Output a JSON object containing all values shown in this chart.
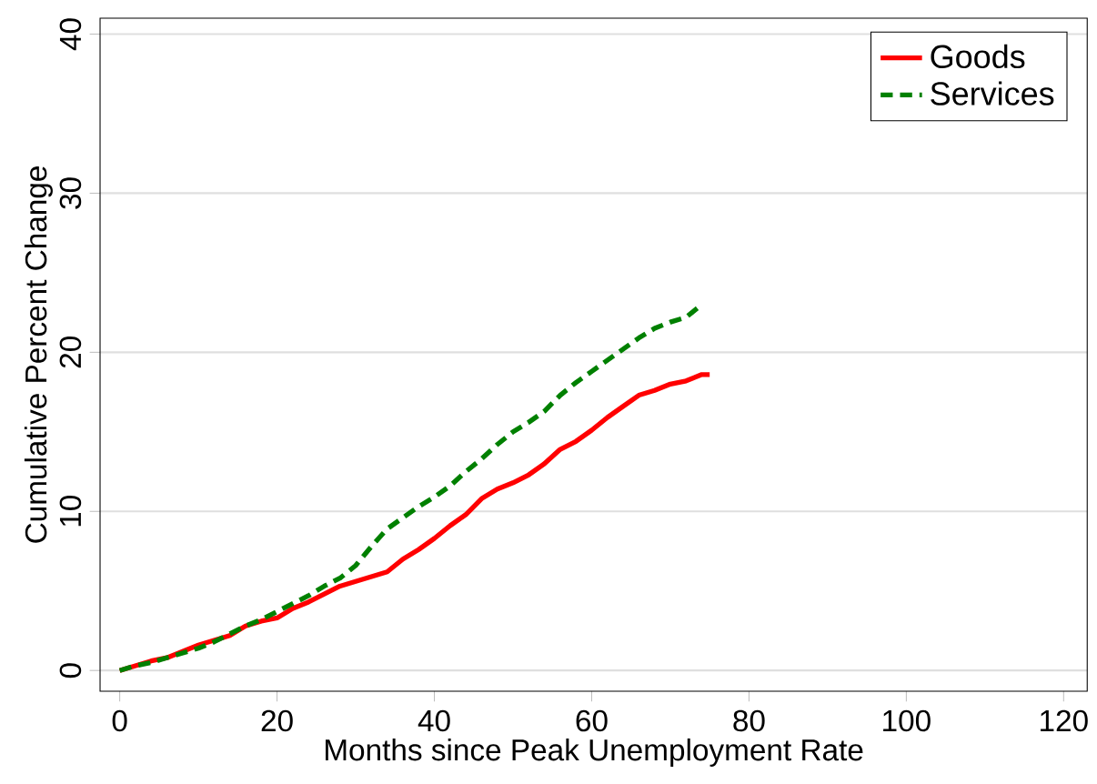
{
  "chart_data": {
    "type": "line",
    "xlabel": "Months since Peak Unemployment Rate",
    "ylabel": "Cumulative Percent Change",
    "xlim": [
      -2.5,
      123
    ],
    "ylim": [
      -1.3,
      41
    ],
    "xticks": [
      0,
      20,
      40,
      60,
      80,
      100,
      120
    ],
    "yticks": [
      0,
      10,
      20,
      30,
      40
    ],
    "grid": "y",
    "legend": "top right",
    "series": [
      {
        "name": "Goods",
        "color": "#ff0000",
        "line_style": "solid",
        "x": [
          0,
          2,
          4,
          6,
          8,
          10,
          12,
          14,
          16,
          18,
          20,
          22,
          24,
          26,
          28,
          30,
          32,
          34,
          36,
          38,
          40,
          42,
          44,
          46,
          48,
          50,
          52,
          54,
          56,
          58,
          60,
          62,
          64,
          66,
          68,
          70,
          72,
          74,
          75
        ],
        "values": [
          0,
          0.3,
          0.6,
          0.8,
          1.2,
          1.6,
          1.9,
          2.2,
          2.8,
          3.1,
          3.3,
          3.9,
          4.3,
          4.8,
          5.3,
          5.6,
          5.9,
          6.2,
          7.0,
          7.6,
          8.3,
          9.1,
          9.8,
          10.8,
          11.4,
          11.8,
          12.3,
          13.0,
          13.9,
          14.4,
          15.1,
          15.9,
          16.6,
          17.3,
          17.6,
          18.0,
          18.2,
          18.6,
          18.6
        ]
      },
      {
        "name": "Services",
        "color": "#008000",
        "line_style": "dashed",
        "x": [
          0,
          2,
          4,
          6,
          8,
          10,
          12,
          14,
          16,
          18,
          20,
          22,
          24,
          26,
          28,
          30,
          32,
          34,
          36,
          38,
          40,
          42,
          44,
          46,
          48,
          50,
          52,
          54,
          56,
          58,
          60,
          62,
          64,
          66,
          68,
          70,
          72,
          74
        ],
        "values": [
          0,
          0.3,
          0.5,
          0.8,
          1.1,
          1.4,
          1.8,
          2.3,
          2.8,
          3.2,
          3.7,
          4.2,
          4.7,
          5.3,
          5.8,
          6.6,
          7.8,
          8.9,
          9.6,
          10.3,
          10.9,
          11.6,
          12.5,
          13.3,
          14.2,
          15.0,
          15.6,
          16.3,
          17.3,
          18.1,
          18.8,
          19.5,
          20.2,
          20.9,
          21.5,
          21.9,
          22.2,
          23.0
        ]
      }
    ]
  }
}
